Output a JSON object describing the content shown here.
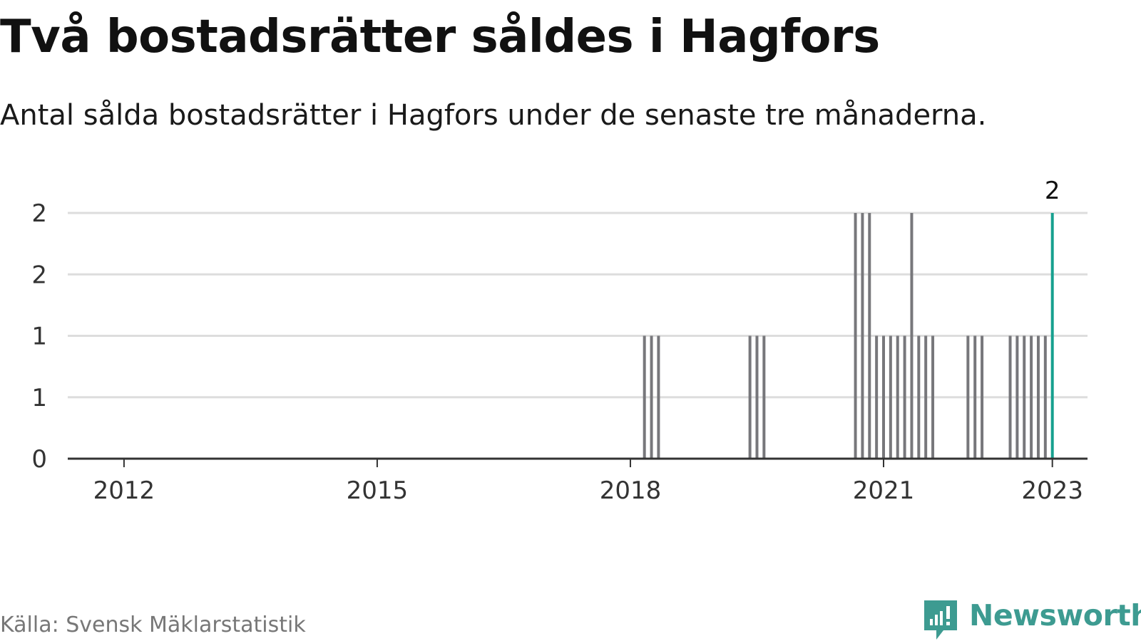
{
  "header": {
    "title": "Två bostadsrätter såldes i Hagfors",
    "subtitle": "Antal sålda bostadsrätter i Hagfors under de senaste tre månaderna."
  },
  "footer": {
    "source": "Källa: Svensk Mäklarstatistik",
    "brand": "Newsworthy",
    "brand_icon": "newsworthy-logo-icon"
  },
  "colors": {
    "bar": "#77777b",
    "highlight": "#17a08f",
    "grid": "#dddddd",
    "axis": "#333333",
    "brand": "#3d9b91"
  },
  "chart_data": {
    "type": "bar",
    "title": "",
    "xlabel": "",
    "ylabel": "",
    "x_axis_type": "date",
    "xlim": [
      "2011-05",
      "2023-06"
    ],
    "ylim": [
      0,
      2
    ],
    "y_ticks": [
      {
        "value": 0,
        "label": "0"
      },
      {
        "value": 0.5,
        "label": "1"
      },
      {
        "value": 1,
        "label": "1"
      },
      {
        "value": 1.5,
        "label": "2"
      },
      {
        "value": 2,
        "label": "2"
      }
    ],
    "x_ticks": [
      {
        "value": "2012-01",
        "label": "2012"
      },
      {
        "value": "2015-01",
        "label": "2015"
      },
      {
        "value": "2018-01",
        "label": "2018"
      },
      {
        "value": "2021-01",
        "label": "2021"
      },
      {
        "value": "2023-01",
        "label": "2023"
      }
    ],
    "grid": true,
    "legend": "none",
    "series": [
      {
        "x": [
          "2018-03",
          "2018-04",
          "2018-05",
          "2019-06",
          "2019-07",
          "2019-08",
          "2020-09",
          "2020-10",
          "2020-11",
          "2020-12",
          "2021-01",
          "2021-02",
          "2021-03",
          "2021-04",
          "2021-05",
          "2021-06",
          "2021-07",
          "2021-08",
          "2022-01",
          "2022-02",
          "2022-03",
          "2022-07",
          "2022-08",
          "2022-09",
          "2022-10",
          "2022-11",
          "2022-12",
          "2023-01"
        ],
        "values": [
          1,
          1,
          1,
          1,
          1,
          1,
          2,
          2,
          2,
          1,
          1,
          1,
          1,
          1,
          2,
          1,
          1,
          1,
          1,
          1,
          1,
          1,
          1,
          1,
          1,
          1,
          1,
          2
        ],
        "highlight_last": true
      }
    ],
    "annotations": [
      {
        "x": "2023-01",
        "y": 2,
        "text": "2"
      }
    ]
  }
}
